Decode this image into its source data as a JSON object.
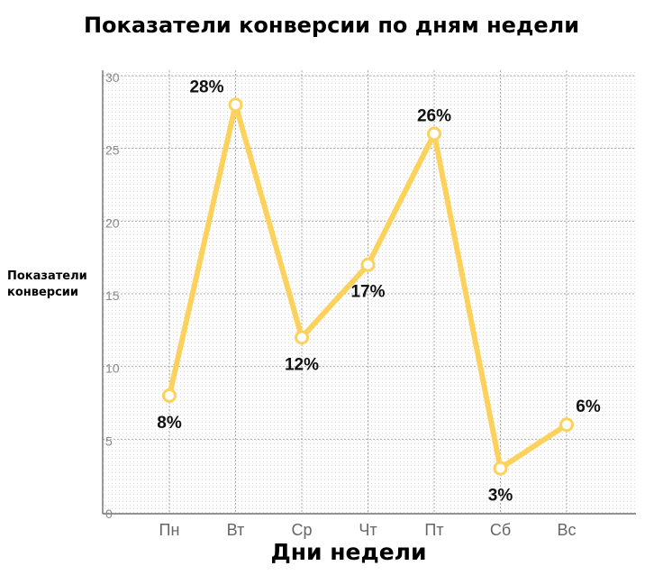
{
  "chart_data": {
    "type": "line",
    "title": "Показатели конверсии по дням недели",
    "xlabel": "Дни недели",
    "ylabel": "Показатели конверсии",
    "categories": [
      "Пн",
      "Вт",
      "Ср",
      "Чт",
      "Пт",
      "Сб",
      "Вс"
    ],
    "values": [
      8,
      28,
      12,
      17,
      26,
      3,
      6
    ],
    "data_labels": [
      "8%",
      "28%",
      "12%",
      "17%",
      "26%",
      "3%",
      "6%"
    ],
    "yticks": [
      0,
      5,
      10,
      15,
      20,
      25,
      30
    ],
    "ylim": [
      0,
      30
    ],
    "grid": true,
    "line_color": "#FDD25C"
  }
}
